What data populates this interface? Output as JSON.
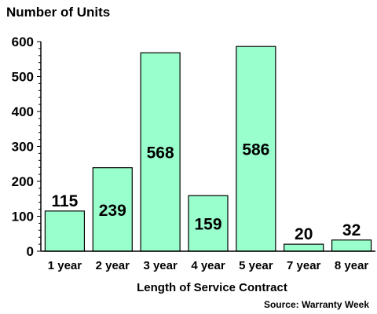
{
  "chart_data": {
    "type": "bar",
    "title": "",
    "ylabel": "Number of Units",
    "xlabel": "Length of Service Contract",
    "source": "Source: Warranty Week",
    "categories": [
      "1 year",
      "2 year",
      "3 year",
      "4 year",
      "5 year",
      "7 year",
      "8 year"
    ],
    "values": [
      115,
      239,
      568,
      159,
      586,
      20,
      32
    ],
    "ylim": [
      0,
      600
    ],
    "yticks": [
      0,
      100,
      200,
      300,
      400,
      500,
      600
    ],
    "grid": false,
    "legend": "none",
    "colors": {
      "bar_fill": "#99ffcc",
      "bar_stroke": "#000000",
      "axis": "#000000"
    }
  }
}
